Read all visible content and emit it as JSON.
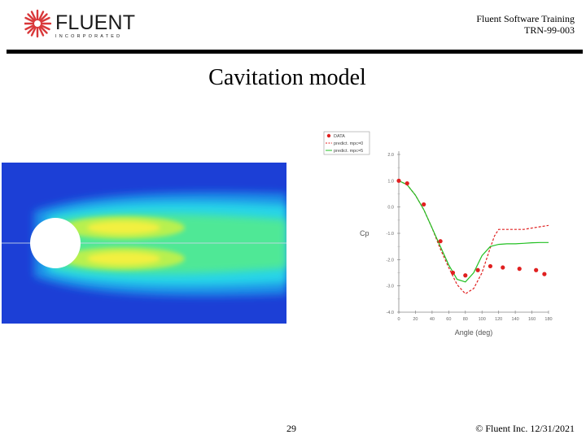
{
  "header": {
    "brand": "FLUENT",
    "brand_sub": "INCORPORATED",
    "line1": "Fluent Software Training",
    "line2": "TRN-99-003"
  },
  "title": "Cavitation model",
  "colors": {
    "rule": "#000000",
    "logo": "#d9383a",
    "field_bg": "#1c3fd6",
    "data_points": "#e02020",
    "series_a": "#e02020",
    "series_b": "#22c022"
  },
  "chart_data": {
    "type": "line",
    "xlabel": "Angle (deg)",
    "ylabel": "Cp",
    "xlim": [
      0,
      180
    ],
    "ylim": [
      -4.0,
      2.0
    ],
    "xticks": [
      0,
      20,
      40,
      60,
      80,
      100,
      120,
      140,
      160,
      180
    ],
    "yticks": [
      2.0,
      1.0,
      0.0,
      -1.0,
      -2.0,
      -3.0,
      -4.0
    ],
    "xtick_labels": [
      "0",
      "20",
      "40",
      "60",
      "80",
      "100",
      "120",
      "140",
      "160",
      "180"
    ],
    "ytick_labels": [
      "2.0",
      "1.0",
      "0.0",
      "-1.0",
      "-2.0",
      "-3.0",
      "-4.0"
    ],
    "legend_position": "top-left",
    "series": [
      {
        "name": "DATA",
        "kind": "scatter",
        "x": [
          0,
          10,
          30,
          50,
          65,
          80,
          95,
          110,
          125,
          145,
          165,
          175
        ],
        "y": [
          1.0,
          0.9,
          0.1,
          -1.3,
          -2.5,
          -2.6,
          -2.4,
          -2.25,
          -2.3,
          -2.35,
          -2.4,
          -2.55
        ]
      },
      {
        "name": "predict. mpc=0",
        "kind": "line",
        "style": "dashed",
        "x": [
          0,
          10,
          20,
          30,
          40,
          50,
          60,
          70,
          80,
          90,
          100,
          110,
          115,
          120,
          130,
          140,
          150,
          160,
          170,
          180
        ],
        "y": [
          1.0,
          0.85,
          0.45,
          -0.1,
          -0.8,
          -1.6,
          -2.3,
          -2.95,
          -3.3,
          -3.1,
          -2.5,
          -1.55,
          -1.1,
          -0.85,
          -0.85,
          -0.85,
          -0.85,
          -0.8,
          -0.75,
          -0.7
        ]
      },
      {
        "name": "predict. mpc=5",
        "kind": "line",
        "style": "solid",
        "x": [
          0,
          10,
          20,
          30,
          40,
          50,
          60,
          70,
          80,
          90,
          100,
          110,
          120,
          130,
          140,
          150,
          160,
          170,
          180
        ],
        "y": [
          1.0,
          0.85,
          0.45,
          -0.1,
          -0.8,
          -1.5,
          -2.2,
          -2.75,
          -2.85,
          -2.5,
          -1.85,
          -1.5,
          -1.42,
          -1.4,
          -1.4,
          -1.38,
          -1.36,
          -1.35,
          -1.35
        ]
      }
    ]
  },
  "footer": {
    "page": "29",
    "copyright": "© Fluent Inc. 12/31/2021"
  }
}
